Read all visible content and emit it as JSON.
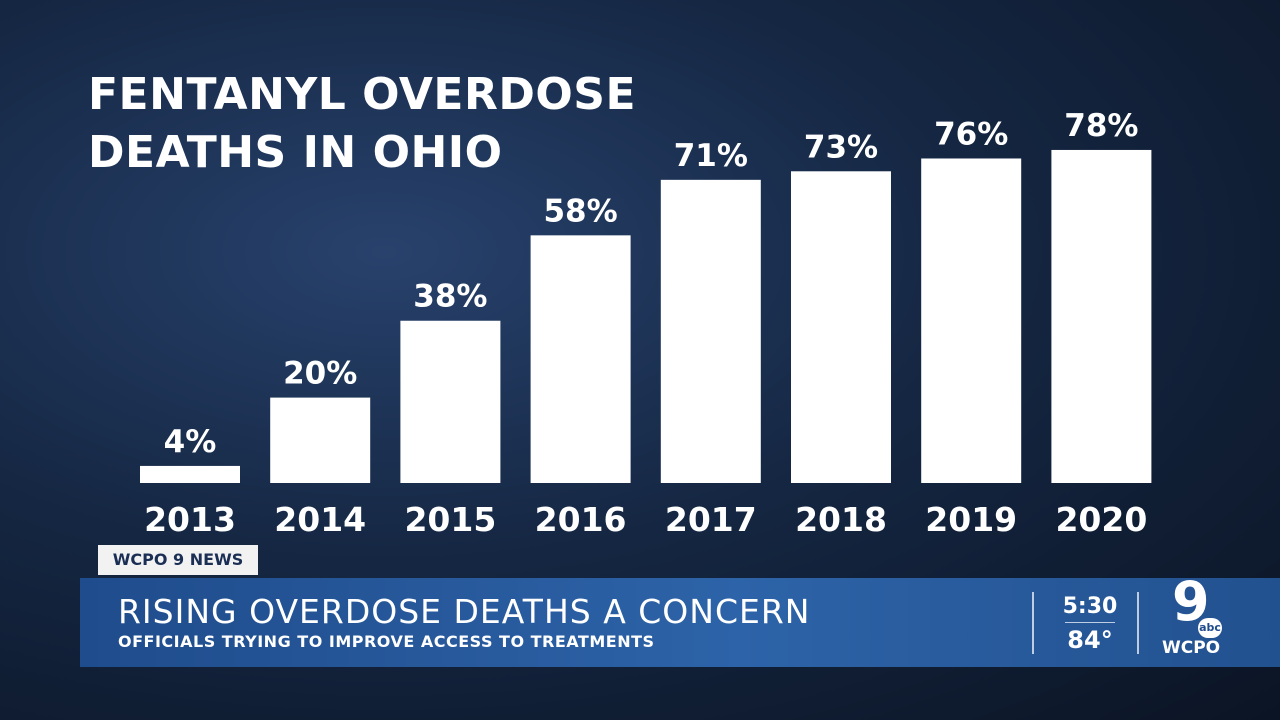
{
  "chart_data": {
    "type": "bar",
    "title": "FENTANYL OVERDOSE DEATHS IN OHIO",
    "categories": [
      "2013",
      "2014",
      "2015",
      "2016",
      "2017",
      "2018",
      "2019",
      "2020"
    ],
    "values": [
      4,
      20,
      38,
      58,
      71,
      73,
      76,
      78
    ],
    "value_labels": [
      "4%",
      "20%",
      "38%",
      "58%",
      "71%",
      "73%",
      "76%",
      "78%"
    ],
    "color": "#ffffff"
  },
  "lower_third": {
    "tag": "WCPO 9 NEWS",
    "headline": "RISING OVERDOSE DEATHS A CONCERN",
    "subheadline": "OFFICIALS TRYING TO IMPROVE ACCESS TO TREATMENTS",
    "time": "5:30",
    "temperature": "84°",
    "logo_number": "9",
    "logo_network": "abc",
    "logo_station": "WCPO"
  }
}
